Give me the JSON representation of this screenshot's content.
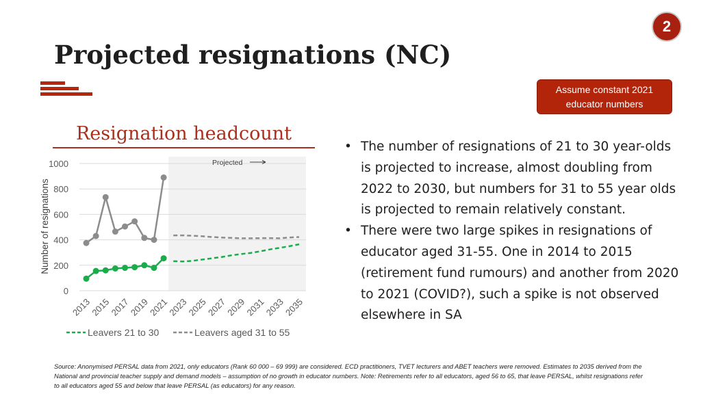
{
  "slide": {
    "page_number": "2",
    "title": "Projected resignations (NC)",
    "callout": {
      "line1": "Assume constant 2021",
      "line2": "educator numbers"
    },
    "chart_heading": "Resignation headcount",
    "bullets": [
      "The number of resignations of 21 to 30 year-olds is projected to increase, almost doubling from 2022 to 2030, but numbers for 31 to 55 year olds is projected to remain relatively constant.",
      "There were two large spikes in resignations of educator aged 31-55. One in 2014 to 2015 (retirement fund rumours) and another from 2020 to 2021 (COVID?), such a spike is not observed elsewhere in SA"
    ],
    "bullet_symbol": "•",
    "source_note": "Source: Anonymised PERSAL data from 2021, only educators (Rank 60 000 – 69 999) are considered. ECD practitioners, TVET lecturers and ABET teachers were removed. Estimates to 2035 derived from the National and provincial teacher supply and demand models – assumption of no growth in educator numbers. Note: Retirements refer to all educators, aged 56 to 65, that leave PERSAL, whilst resignations refer to all educators aged 55 and below that leave PERSAL (as educators) for any reason.",
    "colors": {
      "accent": "#a8200f",
      "callout_bg": "#b3250b",
      "heading": "#a8301c",
      "series_young": "#1aab4a",
      "series_old": "#8c8c8c",
      "projected_shade": "#f2f2f2"
    }
  },
  "chart_data": {
    "type": "line",
    "title": "",
    "xlabel": "",
    "ylabel": "Number of resignations",
    "ylim": [
      0,
      1000
    ],
    "yticks": [
      0,
      200,
      400,
      600,
      800,
      1000
    ],
    "xlim": [
      2013,
      2035
    ],
    "xtick_labels": [
      "2013",
      "2015",
      "2017",
      "2019",
      "2021",
      "2023",
      "2025",
      "2027",
      "2029",
      "2031",
      "2033",
      "2035"
    ],
    "grid": "horizontal",
    "legend_position": "bottom",
    "projection_annotation": "Projected",
    "projection_start": 2021.5,
    "series": [
      {
        "name": "Leavers 21 to 30",
        "color": "#1aab4a",
        "actual": {
          "x": [
            2013,
            2014,
            2015,
            2016,
            2017,
            2018,
            2019,
            2020,
            2021
          ],
          "y": [
            95,
            155,
            160,
            175,
            180,
            185,
            200,
            180,
            255
          ]
        },
        "projected": {
          "x": [
            2022,
            2023,
            2024,
            2025,
            2026,
            2027,
            2028,
            2029,
            2030,
            2031,
            2032,
            2033,
            2034,
            2035
          ],
          "y": [
            232,
            230,
            235,
            245,
            255,
            265,
            278,
            288,
            297,
            310,
            325,
            337,
            350,
            365
          ]
        }
      },
      {
        "name": "Leavers aged 31 to 55",
        "color": "#8c8c8c",
        "actual": {
          "x": [
            2013,
            2014,
            2015,
            2016,
            2017,
            2018,
            2019,
            2020,
            2021
          ],
          "y": [
            375,
            430,
            735,
            465,
            505,
            545,
            415,
            400,
            890
          ]
        },
        "projected": {
          "x": [
            2022,
            2023,
            2024,
            2025,
            2026,
            2027,
            2028,
            2029,
            2030,
            2031,
            2032,
            2033,
            2034,
            2035
          ],
          "y": [
            435,
            435,
            432,
            428,
            422,
            418,
            415,
            412,
            412,
            413,
            413,
            412,
            418,
            422
          ]
        }
      }
    ]
  }
}
